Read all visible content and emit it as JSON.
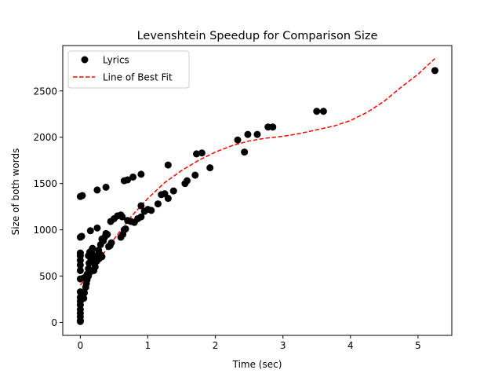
{
  "chart_data": {
    "type": "scatter",
    "title": "Levenshtein Speedup for Comparison Size",
    "xlabel": "Time (sec)",
    "ylabel": "Size of both words",
    "xlim": [
      -0.26,
      5.5
    ],
    "ylim": [
      -140,
      2990
    ],
    "xticks": [
      0,
      1,
      2,
      3,
      4,
      5
    ],
    "yticks": [
      0,
      500,
      1000,
      1500,
      2000,
      2500
    ],
    "xtick_labels": [
      "0",
      "1",
      "2",
      "3",
      "4",
      "5"
    ],
    "ytick_labels": [
      "0",
      "500",
      "1000",
      "1500",
      "2000",
      "2500"
    ],
    "grid": false,
    "legend": {
      "position": "top-left",
      "entries": [
        "Lyrics",
        "Line of Best Fit"
      ]
    },
    "series": [
      {
        "name": "Lyrics",
        "kind": "scatter",
        "color": "#000000",
        "marker": "circle",
        "points": [
          [
            0.0,
            10
          ],
          [
            0.0,
            20
          ],
          [
            0.0,
            60
          ],
          [
            0.0,
            100
          ],
          [
            0.0,
            140
          ],
          [
            0.0,
            190
          ],
          [
            0.0,
            230
          ],
          [
            0.0,
            270
          ],
          [
            0.0,
            330
          ],
          [
            0.0,
            470
          ],
          [
            0.0,
            560
          ],
          [
            0.0,
            620
          ],
          [
            0.0,
            670
          ],
          [
            0.0,
            720
          ],
          [
            0.0,
            750
          ],
          [
            0.0,
            920
          ],
          [
            0.02,
            930
          ],
          [
            0.0,
            1360
          ],
          [
            0.03,
            1370
          ],
          [
            0.05,
            260
          ],
          [
            0.06,
            320
          ],
          [
            0.08,
            380
          ],
          [
            0.09,
            420
          ],
          [
            0.1,
            460
          ],
          [
            0.12,
            500
          ],
          [
            0.14,
            540
          ],
          [
            0.05,
            480
          ],
          [
            0.1,
            520
          ],
          [
            0.12,
            580
          ],
          [
            0.13,
            640
          ],
          [
            0.15,
            700
          ],
          [
            0.17,
            750
          ],
          [
            0.18,
            800
          ],
          [
            0.2,
            560
          ],
          [
            0.22,
            600
          ],
          [
            0.24,
            660
          ],
          [
            0.25,
            720
          ],
          [
            0.27,
            780
          ],
          [
            0.3,
            840
          ],
          [
            0.32,
            900
          ],
          [
            0.34,
            880
          ],
          [
            0.36,
            920
          ],
          [
            0.38,
            960
          ],
          [
            0.4,
            950
          ],
          [
            0.42,
            820
          ],
          [
            0.44,
            830
          ],
          [
            0.46,
            860
          ],
          [
            0.12,
            720
          ],
          [
            0.14,
            760
          ],
          [
            0.16,
            680
          ],
          [
            0.18,
            650
          ],
          [
            0.2,
            690
          ],
          [
            0.22,
            700
          ],
          [
            0.25,
            670
          ],
          [
            0.28,
            690
          ],
          [
            0.3,
            730
          ],
          [
            0.32,
            710
          ],
          [
            0.15,
            990
          ],
          [
            0.25,
            1020
          ],
          [
            0.25,
            1430
          ],
          [
            0.38,
            1460
          ],
          [
            0.45,
            1090
          ],
          [
            0.5,
            1120
          ],
          [
            0.55,
            1150
          ],
          [
            0.6,
            1160
          ],
          [
            0.62,
            1140
          ],
          [
            0.6,
            920
          ],
          [
            0.63,
            950
          ],
          [
            0.65,
            1000
          ],
          [
            0.67,
            1010
          ],
          [
            0.65,
            1530
          ],
          [
            0.7,
            1540
          ],
          [
            0.78,
            1570
          ],
          [
            0.9,
            1600
          ],
          [
            0.7,
            1100
          ],
          [
            0.75,
            1090
          ],
          [
            0.8,
            1080
          ],
          [
            0.85,
            1120
          ],
          [
            0.9,
            1140
          ],
          [
            0.9,
            1260
          ],
          [
            0.95,
            1200
          ],
          [
            1.0,
            1220
          ],
          [
            1.05,
            1210
          ],
          [
            1.15,
            1280
          ],
          [
            1.2,
            1380
          ],
          [
            1.25,
            1390
          ],
          [
            1.3,
            1340
          ],
          [
            1.3,
            1700
          ],
          [
            1.38,
            1420
          ],
          [
            1.55,
            1500
          ],
          [
            1.58,
            1530
          ],
          [
            1.7,
            1590
          ],
          [
            1.72,
            1820
          ],
          [
            1.8,
            1830
          ],
          [
            1.92,
            1670
          ],
          [
            2.33,
            1970
          ],
          [
            2.43,
            1840
          ],
          [
            2.48,
            2030
          ],
          [
            2.62,
            2030
          ],
          [
            2.78,
            2110
          ],
          [
            2.85,
            2110
          ],
          [
            3.5,
            2280
          ],
          [
            3.6,
            2280
          ],
          [
            5.25,
            2720
          ]
        ]
      },
      {
        "name": "Line of Best Fit",
        "kind": "line",
        "color": "#ff0000",
        "linestyle": "dashed",
        "points": [
          [
            0.0,
            400
          ],
          [
            0.25,
            650
          ],
          [
            0.5,
            900
          ],
          [
            0.75,
            1140
          ],
          [
            1.0,
            1340
          ],
          [
            1.25,
            1510
          ],
          [
            1.5,
            1640
          ],
          [
            1.75,
            1750
          ],
          [
            2.0,
            1840
          ],
          [
            2.25,
            1910
          ],
          [
            2.5,
            1960
          ],
          [
            2.75,
            1990
          ],
          [
            3.0,
            2010
          ],
          [
            3.25,
            2040
          ],
          [
            3.5,
            2080
          ],
          [
            3.75,
            2120
          ],
          [
            4.0,
            2180
          ],
          [
            4.25,
            2270
          ],
          [
            4.5,
            2390
          ],
          [
            4.75,
            2540
          ],
          [
            5.0,
            2680
          ],
          [
            5.25,
            2850
          ]
        ]
      }
    ]
  }
}
